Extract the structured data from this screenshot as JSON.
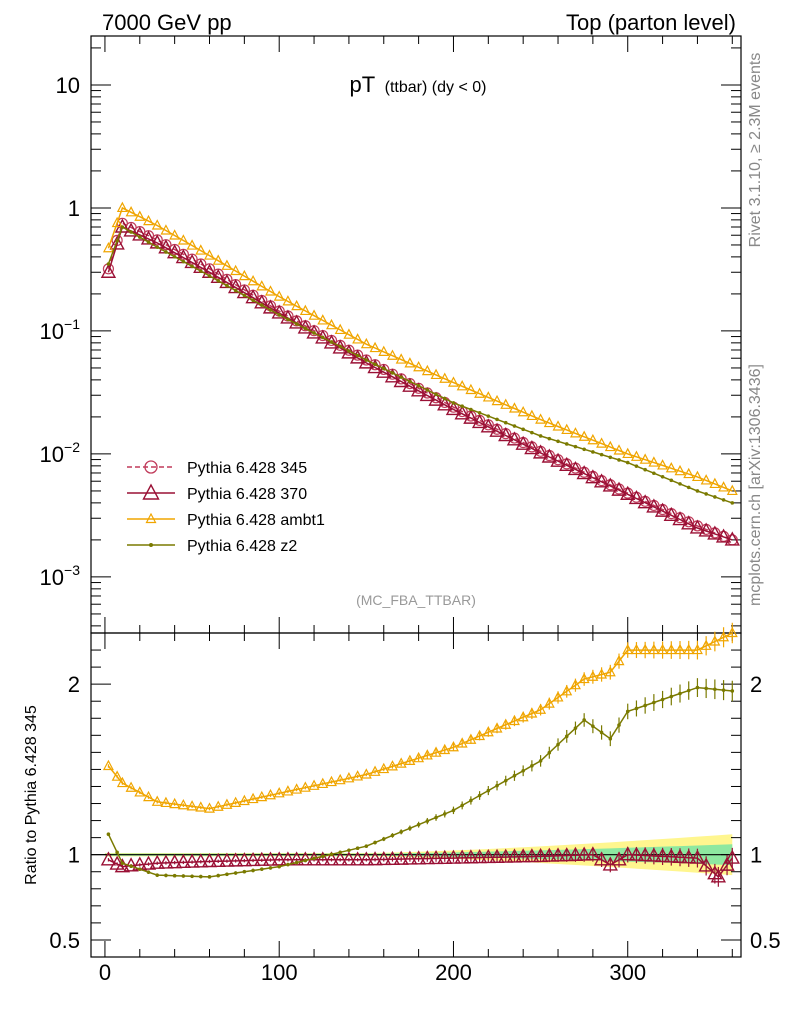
{
  "header": {
    "left": "7000 GeV pp",
    "right": "Top (parton level)"
  },
  "side_labels": {
    "rivet": "Rivet 3.1.10, ≥ 2.3M events",
    "mcplots": "mcplots.cern.ch [arXiv:1306.3436]"
  },
  "chart_data": [
    {
      "type": "line",
      "panel": "main",
      "title_main": "pT",
      "title_sub": "(ttbar) (dy < 0)",
      "watermark": "(MC_FBA_TTBAR)",
      "yscale": "log",
      "xlim": [
        -8,
        365
      ],
      "ylim": [
        0.00035,
        25
      ],
      "x_ticks": [
        0,
        100,
        200,
        300
      ],
      "y_ticks": [
        {
          "value": 10,
          "base": "10",
          "exp": ""
        },
        {
          "value": 1,
          "base": "1",
          "exp": ""
        },
        {
          "value": 0.1,
          "base": "10",
          "exp": "−1"
        },
        {
          "value": 0.01,
          "base": "10",
          "exp": "−2"
        },
        {
          "value": 0.001,
          "base": "10",
          "exp": "−3"
        }
      ],
      "series": [
        {
          "name": "Pythia 6.428 345",
          "color": "#c03a5a",
          "marker": "circle-open",
          "dash": "dashed",
          "points": [
            [
              2,
              0.32
            ],
            [
              10,
              0.75
            ],
            [
              30,
              0.55
            ],
            [
              60,
              0.32
            ],
            [
              100,
              0.145
            ],
            [
              150,
              0.058
            ],
            [
              200,
              0.024
            ],
            [
              250,
              0.0105
            ],
            [
              300,
              0.0048
            ],
            [
              340,
              0.0026
            ],
            [
              360,
              0.002
            ]
          ]
        },
        {
          "name": "Pythia 6.428 370",
          "color": "#9a1035",
          "marker": "triangle-open",
          "dash": "solid",
          "points": [
            [
              2,
              0.3
            ],
            [
              10,
              0.7
            ],
            [
              30,
              0.52
            ],
            [
              60,
              0.3
            ],
            [
              100,
              0.14
            ],
            [
              150,
              0.055
            ],
            [
              200,
              0.023
            ],
            [
              250,
              0.0102
            ],
            [
              300,
              0.0047
            ],
            [
              340,
              0.0025
            ],
            [
              360,
              0.002
            ]
          ]
        },
        {
          "name": "Pythia 6.428 ambt1",
          "color": "#f0a500",
          "marker": "triangle-small",
          "dash": "solid",
          "points": [
            [
              2,
              0.47
            ],
            [
              10,
              1.0
            ],
            [
              30,
              0.72
            ],
            [
              60,
              0.41
            ],
            [
              100,
              0.19
            ],
            [
              150,
              0.078
            ],
            [
              200,
              0.038
            ],
            [
              250,
              0.019
            ],
            [
              300,
              0.01
            ],
            [
              340,
              0.0065
            ],
            [
              360,
              0.005
            ]
          ]
        },
        {
          "name": "Pythia 6.428 z2",
          "color": "#7a7a00",
          "marker": "dot",
          "dash": "solid",
          "points": [
            [
              2,
              0.35
            ],
            [
              10,
              0.7
            ],
            [
              30,
              0.48
            ],
            [
              60,
              0.28
            ],
            [
              100,
              0.135
            ],
            [
              150,
              0.058
            ],
            [
              200,
              0.026
            ],
            [
              250,
              0.014
            ],
            [
              300,
              0.0085
            ],
            [
              340,
              0.005
            ],
            [
              360,
              0.004
            ]
          ]
        }
      ]
    },
    {
      "type": "line",
      "panel": "ratio",
      "ylabel": "Ratio to Pythia 6.428 345",
      "xlim": [
        -8,
        365
      ],
      "ylim": [
        0.4,
        2.3
      ],
      "x_ticks": [
        0,
        100,
        200,
        300
      ],
      "y_ticks": [
        0.5,
        1,
        2
      ],
      "y_tick_labels": [
        "0.5",
        "1",
        "2"
      ],
      "reference": 1,
      "series": [
        {
          "name": "Pythia 6.428 370",
          "color": "#9a1035",
          "points": [
            [
              2,
              0.97
            ],
            [
              10,
              0.93
            ],
            [
              30,
              0.95
            ],
            [
              60,
              0.96
            ],
            [
              100,
              0.97
            ],
            [
              150,
              0.97
            ],
            [
              200,
              0.98
            ],
            [
              250,
              0.99
            ],
            [
              280,
              1.0
            ],
            [
              290,
              0.94
            ],
            [
              300,
              1.0
            ],
            [
              340,
              0.98
            ],
            [
              352,
              0.87
            ],
            [
              360,
              0.98
            ]
          ]
        },
        {
          "name": "Pythia 6.428 ambt1",
          "color": "#f0a500",
          "points": [
            [
              2,
              1.52
            ],
            [
              10,
              1.42
            ],
            [
              30,
              1.31
            ],
            [
              60,
              1.27
            ],
            [
              100,
              1.36
            ],
            [
              150,
              1.47
            ],
            [
              200,
              1.63
            ],
            [
              250,
              1.85
            ],
            [
              275,
              2.03
            ],
            [
              290,
              2.07
            ],
            [
              300,
              2.2
            ],
            [
              340,
              2.2
            ],
            [
              360,
              2.3
            ]
          ]
        },
        {
          "name": "Pythia 6.428 z2",
          "color": "#7a7a00",
          "points": [
            [
              2,
              1.12
            ],
            [
              10,
              0.95
            ],
            [
              30,
              0.88
            ],
            [
              60,
              0.87
            ],
            [
              100,
              0.93
            ],
            [
              150,
              1.05
            ],
            [
              200,
              1.26
            ],
            [
              250,
              1.55
            ],
            [
              275,
              1.79
            ],
            [
              290,
              1.68
            ],
            [
              300,
              1.84
            ],
            [
              340,
              1.98
            ],
            [
              360,
              1.96
            ]
          ]
        }
      ]
    }
  ]
}
